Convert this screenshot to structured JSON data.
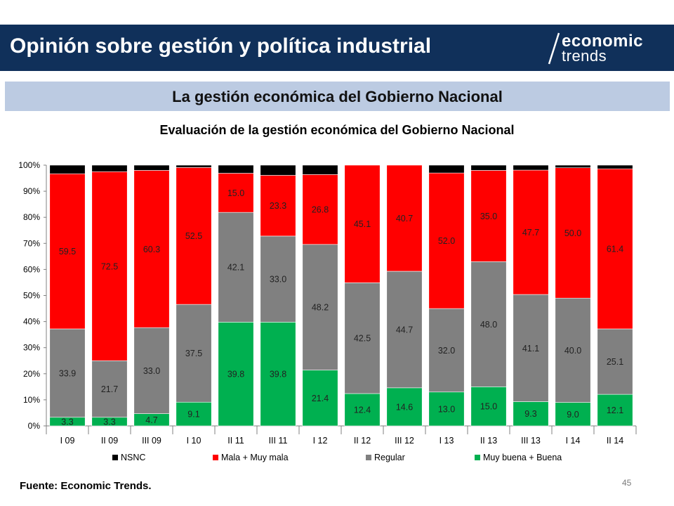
{
  "header": {
    "title": "Opinión sobre gestión y política industrial",
    "logo_line1": "economic",
    "logo_line2": "trends"
  },
  "subtitle": "La gestión económica del Gobierno Nacional",
  "footer": {
    "source": "Fuente: Economic Trends.",
    "page_number": "45"
  },
  "colors": {
    "header_bg": "#10305a",
    "subtitle_bg": "#bccbe2",
    "nsnc": "#000000",
    "mala": "#ff0000",
    "regular": "#808080",
    "buena": "#00b050"
  },
  "chart_data": {
    "type": "bar",
    "stacked": true,
    "percent_stacked": true,
    "title": "Evaluación de la gestión económica del Gobierno Nacional",
    "categories": [
      "I 09",
      "II 09",
      "III 09",
      "I 10",
      "II 11",
      "III 11",
      "I 12",
      "II 12",
      "III 12",
      "I 13",
      "II 13",
      "III 13",
      "I 14",
      "II 14"
    ],
    "ylim": [
      0,
      100
    ],
    "yticks": [
      "0%",
      "10%",
      "20%",
      "30%",
      "40%",
      "50%",
      "60%",
      "70%",
      "80%",
      "90%",
      "100%"
    ],
    "grid": false,
    "legend_position": "bottom",
    "legend": [
      "NSNC",
      "Mala + Muy mala",
      "Regular",
      "Muy buena + Buena"
    ],
    "series": [
      {
        "name": "Muy buena + Buena",
        "color": "#00b050",
        "values": [
          3.3,
          3.3,
          4.7,
          9.1,
          39.8,
          39.8,
          21.4,
          12.4,
          14.6,
          13.0,
          15.0,
          9.3,
          9.0,
          12.1
        ],
        "labels": [
          "3.3",
          "3.3",
          "4.7",
          "9.1",
          "39.8",
          "39.8",
          "21.4",
          "12.4",
          "14.6",
          "13.0",
          "15.0",
          "9.3",
          "9.0",
          "12.1"
        ]
      },
      {
        "name": "Regular",
        "color": "#808080",
        "values": [
          33.9,
          21.7,
          33.0,
          37.5,
          42.1,
          33.0,
          48.2,
          42.5,
          44.7,
          32.0,
          48.0,
          41.1,
          40.0,
          25.1
        ],
        "labels": [
          "33.9",
          "21.7",
          "33.0",
          "37.5",
          "42.1",
          "33.0",
          "48.2",
          "42.5",
          "44.7",
          "32.0",
          "48.0",
          "41.1",
          "40.0",
          "25.1"
        ]
      },
      {
        "name": "Mala + Muy mala",
        "color": "#ff0000",
        "values": [
          59.5,
          72.5,
          60.3,
          52.5,
          15.0,
          23.3,
          26.8,
          45.1,
          40.7,
          52.0,
          35.0,
          47.7,
          50.0,
          61.4
        ],
        "labels": [
          "59.5",
          "72.5",
          "60.3",
          "52.5",
          "15.0",
          "23.3",
          "26.8",
          "45.1",
          "40.7",
          "52.0",
          "35.0",
          "47.7",
          "50.0",
          "61.4"
        ]
      },
      {
        "name": "NSNC",
        "color": "#000000",
        "values": [
          3.3,
          2.5,
          2.0,
          0.9,
          3.1,
          3.9,
          3.6,
          0.0,
          0.0,
          3.0,
          2.0,
          1.9,
          1.0,
          1.4
        ],
        "labels": null
      }
    ]
  }
}
